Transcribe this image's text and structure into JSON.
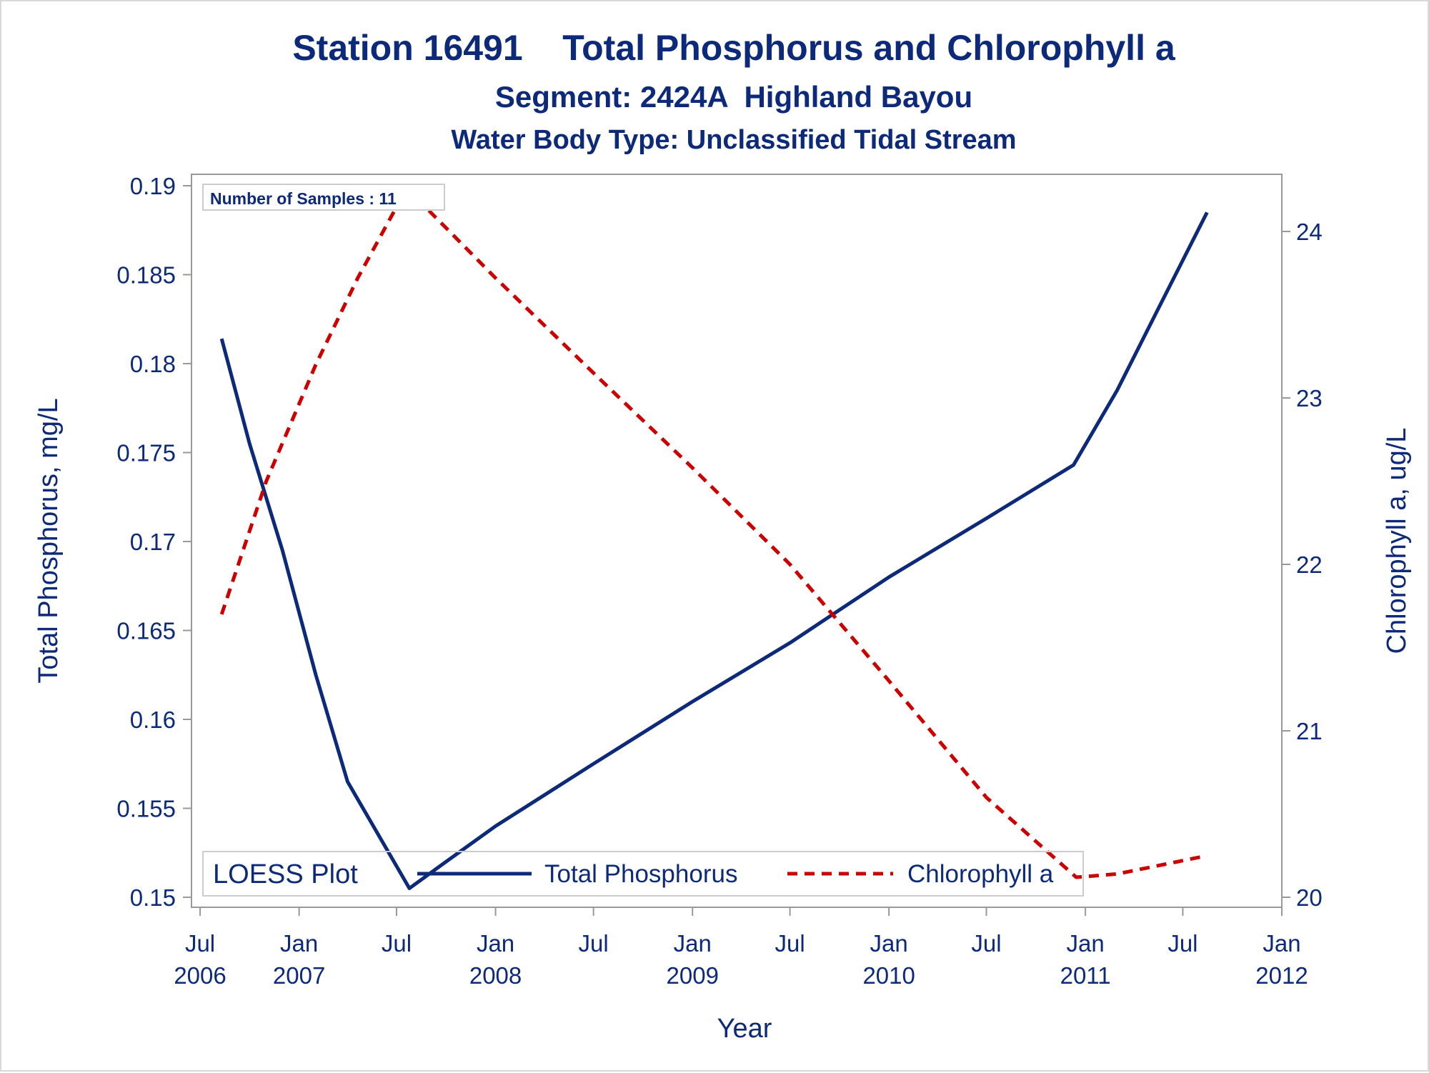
{
  "titles": {
    "title": "Station 16491    Total Phosphorus and Chlorophyll a",
    "subtitle": "Segment: 2424A  Highland Bayou",
    "subtitle2": "Water Body Type: Unclassified Tidal Stream"
  },
  "annotation": "Number of Samples : 11",
  "legend": {
    "title": "LOESS Plot",
    "placement": "bottom-inside"
  },
  "chart_data": {
    "type": "line",
    "xlabel": "Year",
    "ylabel_left": "Total Phosphorus, mg/L",
    "ylabel_right": "Chlorophyll a, ug/L",
    "xlim": [
      "2006-06-15",
      "2012-01-01"
    ],
    "ylim_left": [
      0.15,
      0.19
    ],
    "ylim_right": [
      20,
      24.3
    ],
    "x_ticks": [
      {
        "date": "2006-07-01",
        "line1": "Jul",
        "line2": "2006"
      },
      {
        "date": "2007-01-01",
        "line1": "Jan",
        "line2": "2007"
      },
      {
        "date": "2007-07-01",
        "line1": "Jul",
        "line2": ""
      },
      {
        "date": "2008-01-01",
        "line1": "Jan",
        "line2": "2008"
      },
      {
        "date": "2008-07-01",
        "line1": "Jul",
        "line2": ""
      },
      {
        "date": "2009-01-01",
        "line1": "Jan",
        "line2": "2009"
      },
      {
        "date": "2009-07-01",
        "line1": "Jul",
        "line2": ""
      },
      {
        "date": "2010-01-01",
        "line1": "Jan",
        "line2": "2010"
      },
      {
        "date": "2010-07-01",
        "line1": "Jul",
        "line2": ""
      },
      {
        "date": "2011-01-01",
        "line1": "Jan",
        "line2": "2011"
      },
      {
        "date": "2011-07-01",
        "line1": "Jul",
        "line2": ""
      },
      {
        "date": "2012-01-01",
        "line1": "Jan",
        "line2": "2012"
      }
    ],
    "y_ticks_left": [
      "0.15",
      "0.155",
      "0.16",
      "0.165",
      "0.17",
      "0.175",
      "0.18",
      "0.185",
      "0.19"
    ],
    "y_ticks_right": [
      "20",
      "21",
      "22",
      "23",
      "24"
    ],
    "grid": false,
    "series": [
      {
        "name": "Total Phosphorus",
        "axis": "left",
        "color": "#0d2a7a",
        "style": "solid",
        "points": [
          {
            "x": "2006-08-10",
            "y": 0.1814
          },
          {
            "x": "2006-10-01",
            "y": 0.1755
          },
          {
            "x": "2006-12-01",
            "y": 0.1695
          },
          {
            "x": "2007-02-01",
            "y": 0.1625
          },
          {
            "x": "2007-04-01",
            "y": 0.1565
          },
          {
            "x": "2007-07-25",
            "y": 0.1505
          },
          {
            "x": "2007-10-01",
            "y": 0.152
          },
          {
            "x": "2008-01-01",
            "y": 0.154
          },
          {
            "x": "2008-07-01",
            "y": 0.1575
          },
          {
            "x": "2009-01-01",
            "y": 0.161
          },
          {
            "x": "2009-07-01",
            "y": 0.1643
          },
          {
            "x": "2010-01-01",
            "y": 0.168
          },
          {
            "x": "2010-07-01",
            "y": 0.1713
          },
          {
            "x": "2010-12-10",
            "y": 0.1743
          },
          {
            "x": "2011-03-01",
            "y": 0.1785
          },
          {
            "x": "2011-05-15",
            "y": 0.183
          },
          {
            "x": "2011-08-15",
            "y": 0.1885
          }
        ]
      },
      {
        "name": "Chlorophyll a",
        "axis": "right",
        "color": "#cc0000",
        "style": "dashed",
        "points": [
          {
            "x": "2006-08-10",
            "y": 21.7
          },
          {
            "x": "2006-11-01",
            "y": 22.5
          },
          {
            "x": "2007-02-01",
            "y": 23.2
          },
          {
            "x": "2007-04-20",
            "y": 23.72
          },
          {
            "x": "2007-07-20",
            "y": 24.26
          },
          {
            "x": "2008-01-01",
            "y": 23.72
          },
          {
            "x": "2008-07-01",
            "y": 23.15
          },
          {
            "x": "2009-01-01",
            "y": 22.58
          },
          {
            "x": "2009-07-01",
            "y": 22.0
          },
          {
            "x": "2010-01-01",
            "y": 21.3
          },
          {
            "x": "2010-07-01",
            "y": 20.6
          },
          {
            "x": "2010-12-15",
            "y": 20.12
          },
          {
            "x": "2011-03-01",
            "y": 20.14
          },
          {
            "x": "2011-08-15",
            "y": 20.25
          }
        ]
      }
    ]
  }
}
